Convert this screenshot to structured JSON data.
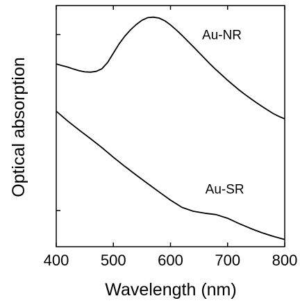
{
  "chart_data": {
    "type": "line",
    "title": "",
    "xlabel": "Wavelength  (nm)",
    "ylabel": "Optical absorption",
    "xlim": [
      400,
      800
    ],
    "ylim": [
      0,
      1
    ],
    "xticks": [
      "400",
      "500",
      "600",
      "700",
      "800"
    ],
    "x_tick_values": [
      400,
      500,
      600,
      700,
      800
    ],
    "y_tick_values": [
      0.15,
      0.88
    ],
    "grid": false,
    "legend": "none",
    "line_color": "#000000",
    "series": [
      {
        "name": "Au-NR",
        "x": [
          400,
          410,
          420,
          430,
          440,
          450,
          460,
          470,
          480,
          490,
          500,
          510,
          520,
          530,
          540,
          550,
          560,
          570,
          580,
          590,
          600,
          610,
          620,
          630,
          640,
          650,
          660,
          670,
          680,
          690,
          700,
          710,
          720,
          730,
          740,
          750,
          760,
          770,
          780,
          790,
          800
        ],
        "y": [
          0.758,
          0.751,
          0.745,
          0.737,
          0.73,
          0.725,
          0.724,
          0.727,
          0.738,
          0.764,
          0.803,
          0.841,
          0.873,
          0.899,
          0.921,
          0.939,
          0.95,
          0.952,
          0.948,
          0.937,
          0.92,
          0.899,
          0.877,
          0.853,
          0.829,
          0.805,
          0.78,
          0.756,
          0.733,
          0.712,
          0.69,
          0.67,
          0.65,
          0.632,
          0.615,
          0.598,
          0.582,
          0.567,
          0.552,
          0.54,
          0.53
        ]
      },
      {
        "name": "Au-SR",
        "x": [
          400,
          420,
          440,
          460,
          480,
          500,
          520,
          540,
          560,
          580,
          600,
          620,
          640,
          660,
          680,
          700,
          720,
          740,
          760,
          780,
          800
        ],
        "y": [
          0.562,
          0.521,
          0.484,
          0.448,
          0.411,
          0.371,
          0.333,
          0.297,
          0.262,
          0.227,
          0.193,
          0.163,
          0.147,
          0.139,
          0.133,
          0.118,
          0.096,
          0.076,
          0.058,
          0.043,
          0.03
        ]
      }
    ]
  }
}
